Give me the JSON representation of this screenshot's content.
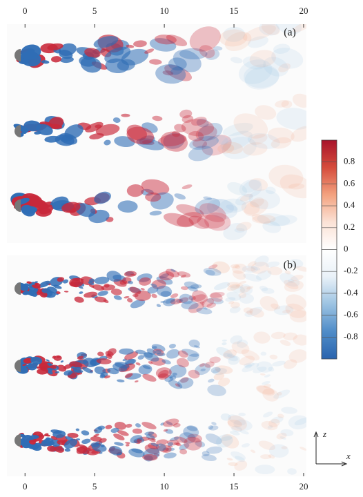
{
  "axes": {
    "xlim": [
      -1.3,
      20.2
    ],
    "xticks": [
      0,
      5,
      10,
      15,
      20
    ]
  },
  "panels": [
    {
      "label": "(a)"
    },
    {
      "label": "(b)"
    }
  ],
  "colorbar": {
    "lim": [
      -1,
      1
    ],
    "ticks": [
      0.8,
      0.6,
      0.4,
      0.2,
      0,
      -0.2,
      -0.4,
      -0.6,
      -0.8
    ],
    "colors": [
      "#2a64ae",
      "#4f8cc8",
      "#9cc3e2",
      "#e9f1f8",
      "#ffffff",
      "#fbe2d6",
      "#f3a27f",
      "#d54c3c",
      "#a8132b"
    ]
  },
  "frame": {
    "z": "z",
    "x": "x"
  }
}
